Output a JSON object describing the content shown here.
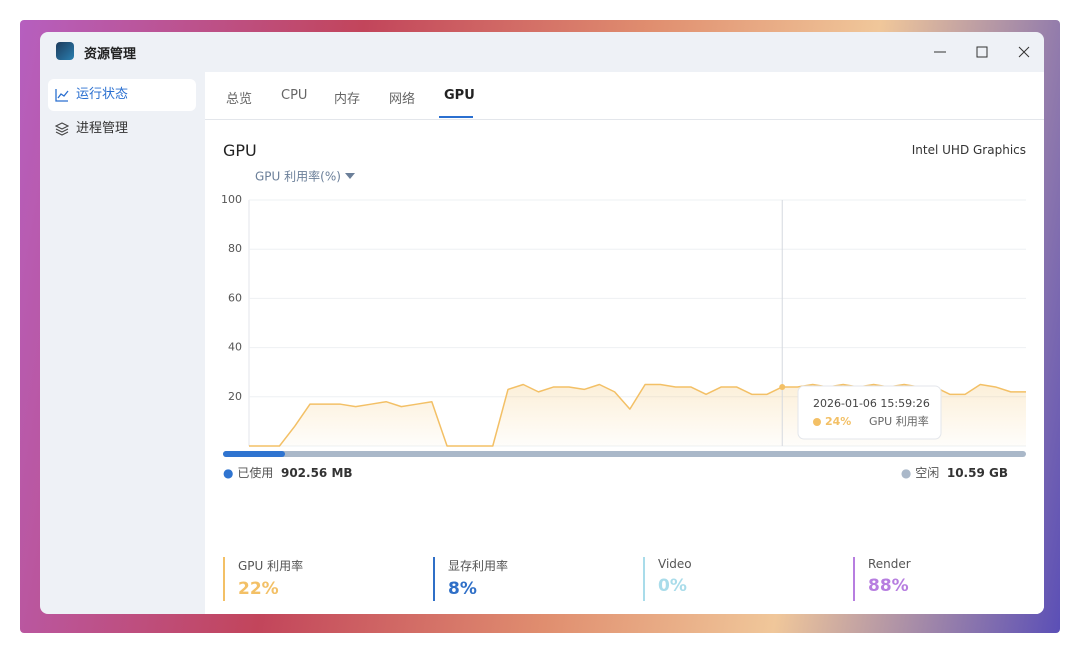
{
  "window": {
    "title": "资源管理"
  },
  "sidebar": {
    "items": [
      "运行状态",
      "进程管理"
    ]
  },
  "tabs": [
    "总览",
    "CPU",
    "内存",
    "网络",
    "GPU"
  ],
  "panel": {
    "title": "GPU",
    "device": "Intel UHD Graphics"
  },
  "chart_data": {
    "type": "line",
    "metric": "GPU 利用率(%)",
    "ylim": [
      0,
      100
    ],
    "yticks": [
      20,
      40,
      60,
      80,
      100
    ],
    "grid": true,
    "series": [
      {
        "name": "GPU 利用率",
        "color": "#f3c066",
        "values": [
          0,
          0,
          0,
          8,
          17,
          17,
          17,
          16,
          17,
          18,
          16,
          17,
          18,
          0,
          0,
          0,
          0,
          23,
          25,
          22,
          24,
          24,
          23,
          25,
          22,
          15,
          25,
          25,
          24,
          24,
          21,
          24,
          24,
          21,
          21,
          24,
          24,
          25,
          24,
          25,
          24,
          25,
          24,
          25,
          24,
          24,
          21,
          21,
          25,
          24,
          22,
          22
        ]
      }
    ],
    "tooltip": {
      "time": "2026-01-06 15:59:26",
      "value": 24,
      "value_label": "24%"
    }
  },
  "memory": {
    "used_label": "已使用",
    "used": "902.56 MB",
    "free_label": "空闲",
    "free": "10.59 GB"
  },
  "stats": [
    {
      "label": "GPU 利用率",
      "value": "22%"
    },
    {
      "label": "显存利用率",
      "value": "8%"
    },
    {
      "label": "Video",
      "value": "0%"
    },
    {
      "label": "Render",
      "value": "88%"
    }
  ]
}
